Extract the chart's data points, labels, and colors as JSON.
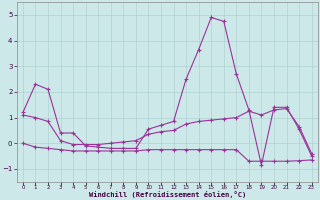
{
  "background_color": "#cce8e8",
  "grid_color": "#aacccc",
  "line_color": "#993399",
  "xlabel": "Windchill (Refroidissement éolien,°C)",
  "hours": [
    0,
    1,
    2,
    3,
    4,
    5,
    6,
    7,
    8,
    9,
    10,
    11,
    12,
    13,
    14,
    15,
    16,
    17,
    18,
    19,
    20,
    21,
    22,
    23
  ],
  "temp": [
    1.2,
    2.3,
    2.1,
    0.4,
    0.4,
    -0.1,
    -0.15,
    -0.2,
    -0.2,
    -0.2,
    0.55,
    0.7,
    0.85,
    2.5,
    3.65,
    4.9,
    4.75,
    2.7,
    1.3,
    -0.85,
    1.4,
    1.4,
    0.55,
    -0.5
  ],
  "windchill": [
    1.1,
    1.0,
    0.85,
    0.1,
    -0.05,
    -0.05,
    -0.05,
    0.0,
    0.05,
    0.1,
    0.35,
    0.45,
    0.5,
    0.75,
    0.85,
    0.9,
    0.95,
    1.0,
    1.25,
    1.1,
    1.3,
    1.35,
    0.65,
    -0.4
  ],
  "flat": [
    0.0,
    -0.15,
    -0.2,
    -0.25,
    -0.3,
    -0.3,
    -0.3,
    -0.3,
    -0.3,
    -0.3,
    -0.25,
    -0.25,
    -0.25,
    -0.25,
    -0.25,
    -0.25,
    -0.25,
    -0.25,
    -0.7,
    -0.7,
    -0.7,
    -0.7,
    -0.68,
    -0.65
  ],
  "ylim": [
    -1.5,
    5.5
  ],
  "yticks": [
    -1,
    0,
    1,
    2,
    3,
    4,
    5
  ],
  "xlim": [
    -0.5,
    23.5
  ]
}
